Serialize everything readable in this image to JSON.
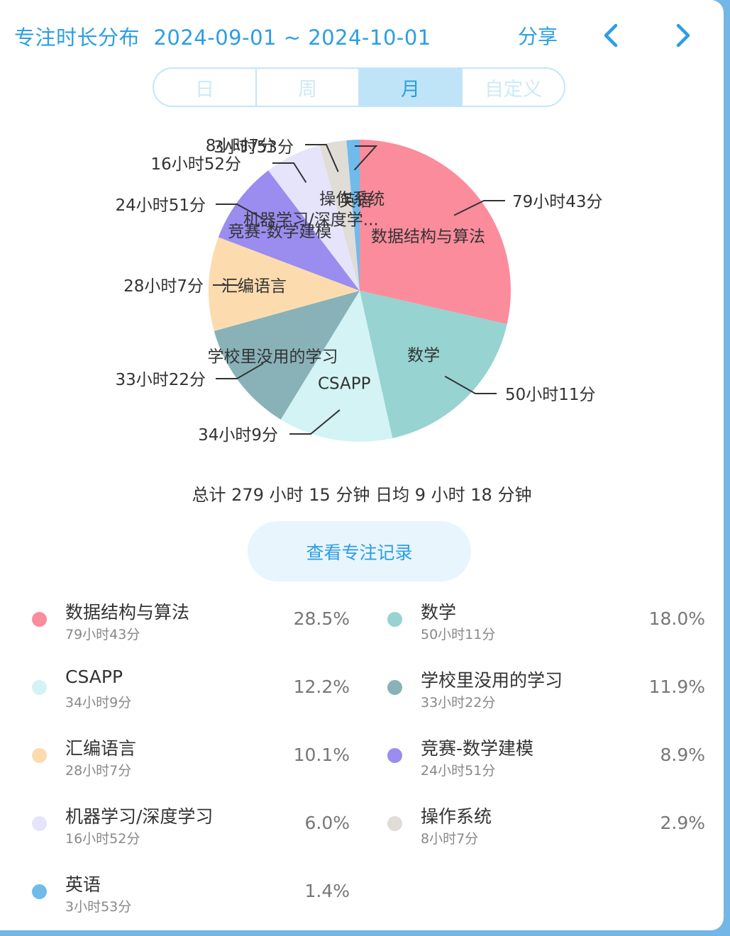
{
  "header": {
    "title": "专注时长分布",
    "date_range": "2024-09-01 ~ 2024-10-01",
    "share_label": "分享"
  },
  "tabs": [
    {
      "label": "日",
      "active": false
    },
    {
      "label": "周",
      "active": false
    },
    {
      "label": "月",
      "active": true
    },
    {
      "label": "自定义",
      "active": false
    }
  ],
  "summary": {
    "total_label": "总计",
    "total_hours": "279",
    "hours_unit": "小时",
    "total_minutes": "15",
    "minutes_unit": "分钟",
    "daily_label": "日均",
    "daily_hours": "9",
    "daily_minutes": "18"
  },
  "records_button": "查看专注记录",
  "colors": {
    "accent": "#2c9ee3"
  },
  "chart_data": {
    "type": "pie",
    "slices": [
      {
        "name": "数据结构与算法",
        "duration": "79小时43分",
        "percent": 28.5,
        "percent_label": "28.5%",
        "minutes": 4783,
        "color": "#fb8c9c"
      },
      {
        "name": "数学",
        "duration": "50小时11分",
        "percent": 18.0,
        "percent_label": "18.0%",
        "minutes": 3011,
        "color": "#96d3d1"
      },
      {
        "name": "CSAPP",
        "duration": "34小时9分",
        "percent": 12.2,
        "percent_label": "12.2%",
        "minutes": 2049,
        "color": "#d3f3f4"
      },
      {
        "name": "学校里没用的学习",
        "duration": "33小时22分",
        "percent": 11.9,
        "percent_label": "11.9%",
        "minutes": 2002,
        "color": "#88b2b8"
      },
      {
        "name": "汇编语言",
        "duration": "28小时7分",
        "percent": 10.1,
        "percent_label": "10.1%",
        "minutes": 1687,
        "color": "#fcdcae"
      },
      {
        "name": "竞赛-数学建模",
        "duration": "24小时51分",
        "percent": 8.9,
        "percent_label": "8.9%",
        "minutes": 1491,
        "color": "#9b8cf0"
      },
      {
        "name": "机器学习/深度学习",
        "short_name": "机器学习/深度学...",
        "duration": "16小时52分",
        "percent": 6.0,
        "percent_label": "6.0%",
        "minutes": 1012,
        "color": "#e6e4fa"
      },
      {
        "name": "操作系统",
        "duration": "8小时7分",
        "percent": 2.9,
        "percent_label": "2.9%",
        "minutes": 487,
        "color": "#e0dcd6"
      },
      {
        "name": "英语",
        "duration": "3小时53分",
        "percent": 1.4,
        "percent_label": "1.4%",
        "minutes": 233,
        "color": "#6ebbec"
      }
    ]
  }
}
